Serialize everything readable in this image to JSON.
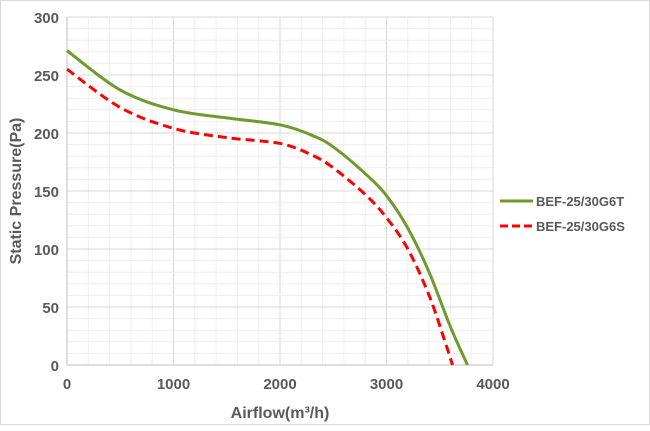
{
  "chart_data": {
    "type": "line",
    "title": "",
    "xlabel": "Airflow(m³/h)",
    "ylabel": "Static Pressure(Pa)",
    "xlim": [
      0,
      4000
    ],
    "ylim": [
      0,
      300
    ],
    "xticks": [
      "0",
      "1000",
      "2000",
      "3000",
      "4000"
    ],
    "yticks": [
      "0",
      "50",
      "100",
      "150",
      "200",
      "250",
      "300"
    ],
    "grid": true,
    "legend_position": "right",
    "series": [
      {
        "name": "BEF-25/30G6T",
        "color": "#6f9a2f",
        "style": "solid",
        "x": [
          0,
          500,
          1000,
          1500,
          2000,
          2300,
          2500,
          2800,
          3000,
          3200,
          3400,
          3600,
          3760
        ],
        "y": [
          271,
          237,
          220,
          213,
          207,
          198,
          188,
          165,
          146,
          118,
          80,
          33,
          0
        ]
      },
      {
        "name": "BEF-25/30G6S",
        "color": "#ff0000",
        "style": "dashed",
        "x": [
          0,
          500,
          1000,
          1500,
          2000,
          2300,
          2500,
          2800,
          3000,
          3200,
          3400,
          3550,
          3620
        ],
        "y": [
          255,
          222,
          204,
          196,
          191,
          181,
          170,
          147,
          127,
          100,
          60,
          20,
          0
        ]
      }
    ]
  }
}
